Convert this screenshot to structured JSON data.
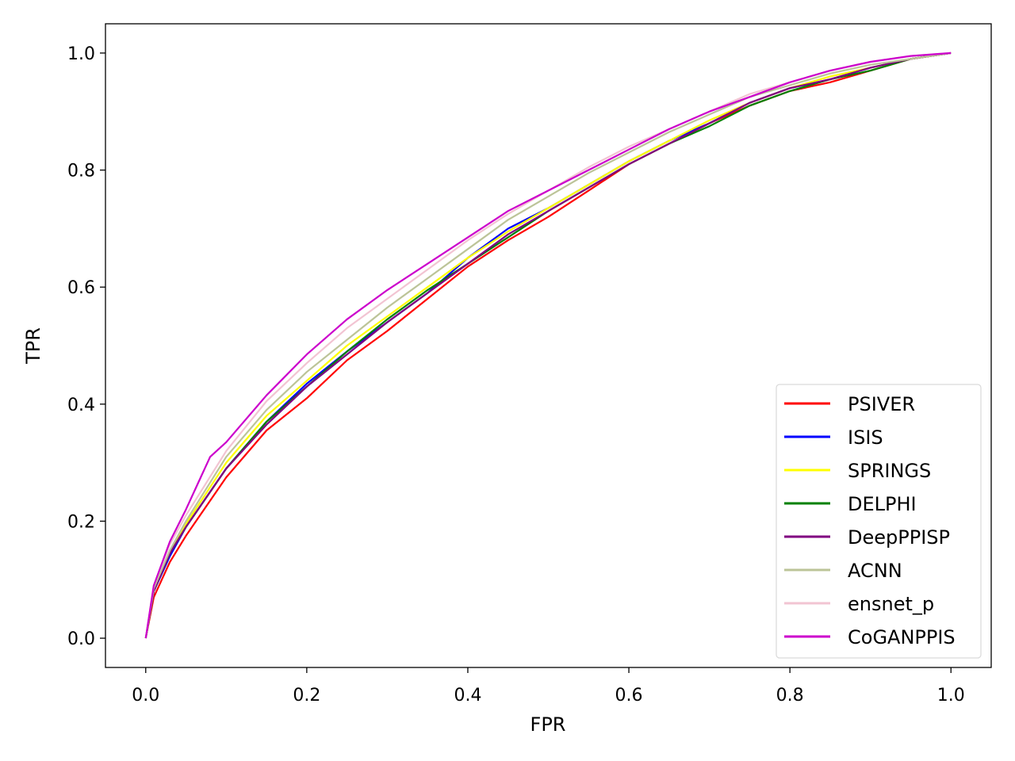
{
  "chart_data": {
    "type": "line",
    "title": "",
    "xlabel": "FPR",
    "ylabel": "TPR",
    "xlim": [
      -0.05,
      1.05
    ],
    "ylim": [
      -0.05,
      1.05
    ],
    "xticks": [
      "0.0",
      "0.2",
      "0.4",
      "0.6",
      "0.8",
      "1.0"
    ],
    "yticks": [
      "0.0",
      "0.2",
      "0.4",
      "0.6",
      "0.8",
      "1.0"
    ],
    "grid": false,
    "legend_position": "lower-right",
    "series": [
      {
        "name": "PSIVER",
        "color": "#ff0000",
        "x": [
          0,
          0.01,
          0.03,
          0.05,
          0.1,
          0.15,
          0.2,
          0.25,
          0.3,
          0.35,
          0.4,
          0.45,
          0.5,
          0.55,
          0.6,
          0.65,
          0.7,
          0.75,
          0.8,
          0.85,
          0.9,
          0.95,
          1.0
        ],
        "y": [
          0,
          0.07,
          0.13,
          0.175,
          0.275,
          0.355,
          0.41,
          0.475,
          0.525,
          0.58,
          0.635,
          0.68,
          0.72,
          0.765,
          0.81,
          0.845,
          0.88,
          0.91,
          0.935,
          0.95,
          0.97,
          0.99,
          1.0
        ]
      },
      {
        "name": "ISIS",
        "color": "#0000ff",
        "x": [
          0,
          0.01,
          0.03,
          0.05,
          0.1,
          0.15,
          0.2,
          0.25,
          0.3,
          0.35,
          0.4,
          0.45,
          0.5,
          0.55,
          0.6,
          0.65,
          0.7,
          0.75,
          0.8,
          0.85,
          0.9,
          0.95,
          1.0
        ],
        "y": [
          0,
          0.08,
          0.14,
          0.19,
          0.29,
          0.37,
          0.435,
          0.49,
          0.54,
          0.59,
          0.65,
          0.7,
          0.735,
          0.775,
          0.815,
          0.85,
          0.88,
          0.915,
          0.94,
          0.955,
          0.975,
          0.99,
          1.0
        ]
      },
      {
        "name": "SPRINGS",
        "color": "#ffff00",
        "x": [
          0,
          0.01,
          0.03,
          0.05,
          0.1,
          0.15,
          0.2,
          0.25,
          0.3,
          0.35,
          0.4,
          0.45,
          0.5,
          0.55,
          0.6,
          0.65,
          0.7,
          0.75,
          0.8,
          0.85,
          0.9,
          0.95,
          1.0
        ],
        "y": [
          0,
          0.08,
          0.145,
          0.195,
          0.3,
          0.38,
          0.44,
          0.5,
          0.55,
          0.6,
          0.65,
          0.695,
          0.735,
          0.775,
          0.815,
          0.85,
          0.885,
          0.915,
          0.94,
          0.96,
          0.975,
          0.99,
          1.0
        ]
      },
      {
        "name": "DELPHI",
        "color": "#008000",
        "x": [
          0,
          0.01,
          0.03,
          0.05,
          0.1,
          0.15,
          0.2,
          0.25,
          0.3,
          0.35,
          0.4,
          0.45,
          0.5,
          0.55,
          0.6,
          0.65,
          0.7,
          0.75,
          0.8,
          0.85,
          0.9,
          0.95,
          1.0
        ],
        "y": [
          0,
          0.08,
          0.145,
          0.19,
          0.29,
          0.37,
          0.43,
          0.49,
          0.545,
          0.595,
          0.64,
          0.685,
          0.73,
          0.77,
          0.81,
          0.845,
          0.875,
          0.91,
          0.935,
          0.955,
          0.97,
          0.99,
          1.0
        ]
      },
      {
        "name": "DeepPPISP",
        "color": "#800080",
        "x": [
          0,
          0.01,
          0.03,
          0.05,
          0.1,
          0.15,
          0.2,
          0.25,
          0.3,
          0.35,
          0.4,
          0.45,
          0.5,
          0.55,
          0.6,
          0.65,
          0.7,
          0.75,
          0.8,
          0.85,
          0.9,
          0.95,
          1.0
        ],
        "y": [
          0,
          0.08,
          0.145,
          0.19,
          0.29,
          0.365,
          0.43,
          0.485,
          0.54,
          0.59,
          0.64,
          0.69,
          0.73,
          0.77,
          0.81,
          0.845,
          0.88,
          0.915,
          0.94,
          0.955,
          0.975,
          0.99,
          1.0
        ]
      },
      {
        "name": "ACNN",
        "color": "#bcc498",
        "x": [
          0,
          0.01,
          0.03,
          0.05,
          0.1,
          0.15,
          0.2,
          0.25,
          0.3,
          0.35,
          0.4,
          0.45,
          0.5,
          0.55,
          0.6,
          0.65,
          0.7,
          0.75,
          0.8,
          0.85,
          0.9,
          0.95,
          1.0
        ],
        "y": [
          0,
          0.085,
          0.15,
          0.2,
          0.31,
          0.39,
          0.455,
          0.51,
          0.565,
          0.615,
          0.665,
          0.715,
          0.755,
          0.795,
          0.83,
          0.865,
          0.895,
          0.925,
          0.945,
          0.965,
          0.98,
          0.99,
          1.0
        ]
      },
      {
        "name": "ensnet_p",
        "color": "#f2c4d2",
        "x": [
          0,
          0.01,
          0.03,
          0.05,
          0.1,
          0.15,
          0.2,
          0.25,
          0.3,
          0.35,
          0.4,
          0.45,
          0.5,
          0.55,
          0.6,
          0.65,
          0.7,
          0.75,
          0.8,
          0.85,
          0.9,
          0.95,
          1.0
        ],
        "y": [
          0,
          0.09,
          0.16,
          0.21,
          0.32,
          0.405,
          0.47,
          0.53,
          0.58,
          0.63,
          0.68,
          0.725,
          0.765,
          0.805,
          0.84,
          0.87,
          0.9,
          0.93,
          0.95,
          0.97,
          0.985,
          0.995,
          1.0
        ]
      },
      {
        "name": "CoGANPPIS",
        "color": "#cc00cc",
        "x": [
          0,
          0.01,
          0.03,
          0.05,
          0.08,
          0.1,
          0.15,
          0.2,
          0.25,
          0.3,
          0.35,
          0.4,
          0.45,
          0.5,
          0.55,
          0.6,
          0.65,
          0.7,
          0.75,
          0.8,
          0.85,
          0.9,
          0.95,
          1.0
        ],
        "y": [
          0,
          0.09,
          0.165,
          0.22,
          0.31,
          0.335,
          0.415,
          0.485,
          0.545,
          0.595,
          0.64,
          0.685,
          0.73,
          0.765,
          0.8,
          0.835,
          0.87,
          0.9,
          0.925,
          0.95,
          0.97,
          0.985,
          0.995,
          1.0
        ]
      }
    ]
  }
}
